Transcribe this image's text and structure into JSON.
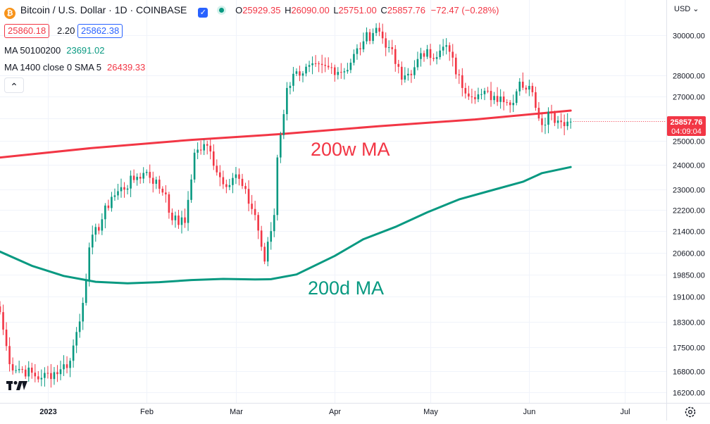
{
  "header": {
    "symbol_title": "Bitcoin / U.S. Dollar · 1D · COINBASE",
    "ohlc": [
      {
        "k": "O",
        "v": "25929.35"
      },
      {
        "k": "H",
        "v": "26090.00"
      },
      {
        "k": "L",
        "v": "25751.00"
      },
      {
        "k": "C",
        "v": "25857.76"
      }
    ],
    "change": "−72.47 (−0.28%)",
    "bid": "25860.18",
    "spread": "2.20",
    "ask": "25862.38",
    "collapse_glyph": "⌃"
  },
  "indicators": [
    {
      "label": "MA 50100200",
      "value": "23691.02",
      "color": "#089981"
    },
    {
      "label": "MA 1400 close 0 SMA 5",
      "value": "26439.33",
      "color": "#f23645"
    }
  ],
  "price_axis": {
    "currency": "USD",
    "currency_menu": "USD ⌄"
  },
  "last_price": {
    "price": "25857.76",
    "countdown": "04:09:04"
  },
  "settings_icon": "settings-gear-icon",
  "logo": "tradingview-logo",
  "colors": {
    "up": "#089981",
    "down": "#f23645",
    "ma_200w": "#f23645",
    "ma_200d": "#089981"
  },
  "annotations": [
    {
      "text": "200w MA",
      "color": "#f23645"
    },
    {
      "text": "200d MA",
      "color": "#089981"
    }
  ],
  "chart_data": {
    "type": "candlestick",
    "title": "Bitcoin / U.S. Dollar · 1D · COINBASE",
    "y_scale": "log",
    "ylim": [
      15900,
      31900
    ],
    "y_ticks": [
      16200,
      16800,
      17500,
      18300,
      19100,
      19850,
      20600,
      21400,
      22200,
      23000,
      24000,
      25000,
      26000,
      27000,
      28000,
      30000
    ],
    "y_tick_labels": [
      "16200.00",
      "16800.00",
      "17500.00",
      "18300.00",
      "19100.00",
      "19850.00",
      "20600.00",
      "21400.00",
      "22200.00",
      "23000.00",
      "24000.00",
      "25000.00",
      "26000.00",
      "27000.00",
      "28000.00",
      "30000.00"
    ],
    "x_range": [
      "2022-12-17",
      "2023-07-14"
    ],
    "x_ticks": [
      {
        "date": "2023-01-01",
        "label": "2023"
      },
      {
        "date": "2023-02-01",
        "label": "Feb"
      },
      {
        "date": "2023-03-01",
        "label": "Mar"
      },
      {
        "date": "2023-04-01",
        "label": "Apr"
      },
      {
        "date": "2023-05-01",
        "label": "May"
      },
      {
        "date": "2023-06-01",
        "label": "Jun"
      },
      {
        "date": "2023-07-01",
        "label": "Jul"
      }
    ],
    "grid": true,
    "candle_anchors": {
      "dates": [
        "2022-12-17",
        "2022-12-20",
        "2022-12-30",
        "2023-01-05",
        "2023-01-08",
        "2023-01-12",
        "2023-01-14",
        "2023-01-21",
        "2023-01-29",
        "2023-02-01",
        "2023-02-07",
        "2023-02-09",
        "2023-02-13",
        "2023-02-16",
        "2023-02-20",
        "2023-02-25",
        "2023-03-01",
        "2023-03-07",
        "2023-03-10",
        "2023-03-13",
        "2023-03-14",
        "2023-03-17",
        "2023-03-20",
        "2023-03-30",
        "2023-04-04",
        "2023-04-10",
        "2023-04-14",
        "2023-04-18",
        "2023-04-22",
        "2023-04-26",
        "2023-04-30",
        "2023-05-03",
        "2023-05-06",
        "2023-05-11",
        "2023-05-16",
        "2023-05-23",
        "2023-05-26",
        "2023-05-29",
        "2023-06-02",
        "2023-06-05",
        "2023-06-07",
        "2023-06-10",
        "2023-06-14"
      ],
      "closes": [
        18600,
        17000,
        16600,
        16850,
        17100,
        18900,
        20800,
        22700,
        23500,
        23700,
        22800,
        21800,
        21700,
        24500,
        24800,
        23200,
        23600,
        22000,
        20300,
        22000,
        24300,
        27400,
        28200,
        28400,
        28200,
        29700,
        30400,
        29400,
        27800,
        28400,
        29300,
        28900,
        29500,
        27400,
        27100,
        27000,
        26600,
        27700,
        27200,
        25700,
        26300,
        25900,
        25850
      ]
    },
    "series": [
      {
        "name": "MA 50100200",
        "points": [
          [
            "2022-12-17",
            20650
          ],
          [
            "2022-12-27",
            20150
          ],
          [
            "2023-01-06",
            19800
          ],
          [
            "2023-01-16",
            19600
          ],
          [
            "2023-01-26",
            19550
          ],
          [
            "2023-02-05",
            19590
          ],
          [
            "2023-02-15",
            19660
          ],
          [
            "2023-02-25",
            19700
          ],
          [
            "2023-03-07",
            19680
          ],
          [
            "2023-03-12",
            19690
          ],
          [
            "2023-03-20",
            19850
          ],
          [
            "2023-04-01",
            20500
          ],
          [
            "2023-04-10",
            21100
          ],
          [
            "2023-04-20",
            21550
          ],
          [
            "2023-04-30",
            22100
          ],
          [
            "2023-05-10",
            22600
          ],
          [
            "2023-05-20",
            22950
          ],
          [
            "2023-05-30",
            23300
          ],
          [
            "2023-06-05",
            23650
          ],
          [
            "2023-06-14",
            23900
          ]
        ]
      },
      {
        "name": "MA 1400 close 0 SMA 5",
        "points": [
          [
            "2022-12-17",
            24300
          ],
          [
            "2023-01-15",
            24700
          ],
          [
            "2023-02-15",
            25050
          ],
          [
            "2023-03-15",
            25300
          ],
          [
            "2023-04-15",
            25650
          ],
          [
            "2023-05-15",
            25950
          ],
          [
            "2023-06-14",
            26350
          ]
        ]
      }
    ]
  }
}
